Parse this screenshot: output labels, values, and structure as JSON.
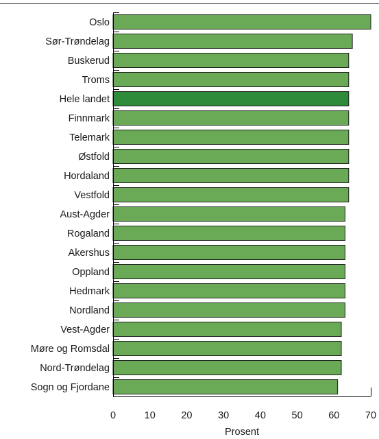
{
  "chart_data": {
    "type": "bar",
    "orientation": "horizontal",
    "xlabel": "Prosent",
    "xlim": [
      0,
      70
    ],
    "xticks": [
      0,
      10,
      20,
      30,
      40,
      50,
      60,
      70
    ],
    "categories": [
      "Oslo",
      "Sør-Trøndelag",
      "Buskerud",
      "Troms",
      "Hele landet",
      "Finnmark",
      "Telemark",
      "Østfold",
      "Hordaland",
      "Vestfold",
      "Aust-Agder",
      "Rogaland",
      "Akershus",
      "Oppland",
      "Hedmark",
      "Nordland",
      "Vest-Agder",
      "Møre og Romsdal",
      "Nord-Trøndelag",
      "Sogn og Fjordane"
    ],
    "values": [
      70,
      65,
      64,
      64,
      64,
      64,
      64,
      64,
      64,
      64,
      63,
      63,
      63,
      63,
      63,
      63,
      62,
      62,
      62,
      61
    ],
    "bar_color": "#6aaa56",
    "highlight_color": "#2e8b3a",
    "highlight_category": "Hele landet",
    "grid": false
  }
}
